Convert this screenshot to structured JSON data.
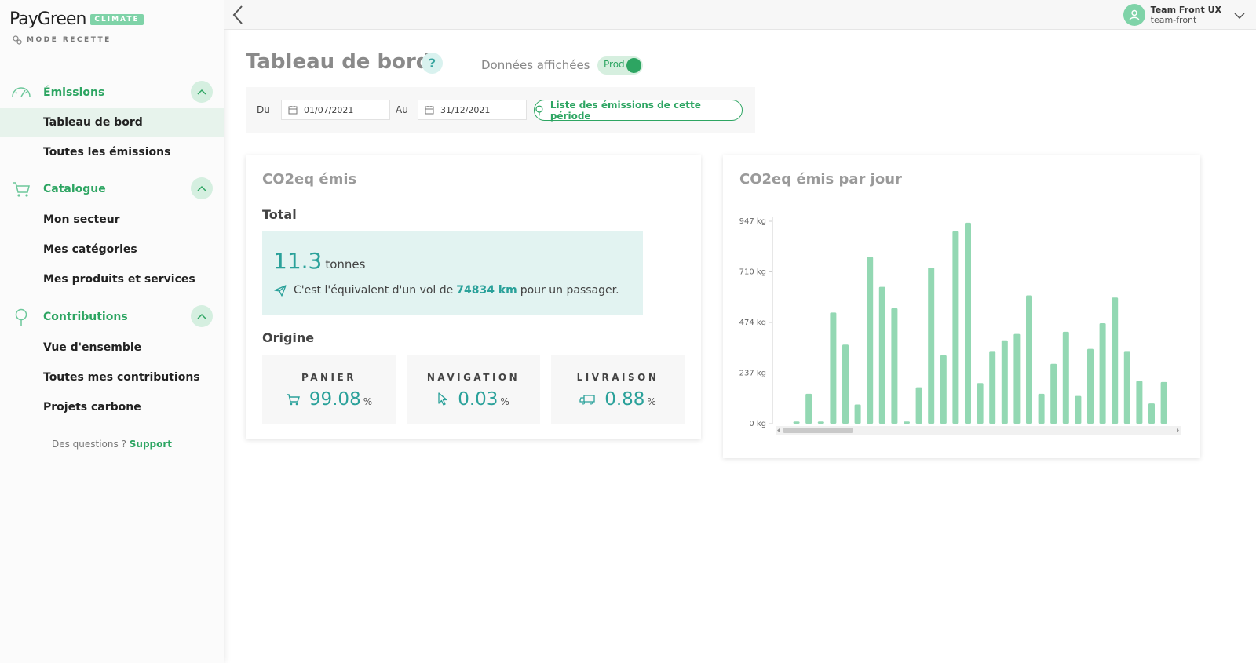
{
  "brand": {
    "name_light": "Pay",
    "name_bold": "Green",
    "badge": "CLIMATE",
    "mode": "MODE RECETTE"
  },
  "sidebar": {
    "sections": [
      {
        "label": "Émissions",
        "icon": "gauge-icon",
        "items": [
          {
            "label": "Tableau de bord",
            "active": true
          },
          {
            "label": "Toutes les émissions"
          }
        ]
      },
      {
        "label": "Catalogue",
        "icon": "cart-icon",
        "items": [
          {
            "label": "Mon secteur"
          },
          {
            "label": "Mes catégories"
          },
          {
            "label": "Mes produits et services"
          }
        ]
      },
      {
        "label": "Contributions",
        "icon": "tree-icon",
        "items": [
          {
            "label": "Vue d'ensemble"
          },
          {
            "label": "Toutes mes contributions"
          },
          {
            "label": "Projets carbone"
          }
        ]
      }
    ],
    "support_text": "Des questions ?",
    "support_link": "Support"
  },
  "topbar": {
    "user_name": "Team Front UX",
    "user_sub": "team-front"
  },
  "header": {
    "title": "Tableau de bord",
    "help": "?",
    "data_label": "Données affichées",
    "toggle_label": "Prod"
  },
  "filter": {
    "from_label": "Du",
    "from_value": "01/07/2021",
    "to_label": "Au",
    "to_value": "31/12/2021",
    "list_button": "Liste des émissions de cette période"
  },
  "co2_card": {
    "title": "CO2eq émis",
    "total_heading": "Total",
    "total_value": "11.3",
    "total_unit": "tonnes",
    "equiv_prefix": "C'est l'équivalent d'un vol de",
    "equiv_value": "74834 km",
    "equiv_suffix": "pour un passager.",
    "origin_heading": "Origine",
    "origins": [
      {
        "label": "PANIER",
        "value": "99.08",
        "unit": "%",
        "icon": "cart-icon"
      },
      {
        "label": "NAVIGATION",
        "value": "0.03",
        "unit": "%",
        "icon": "cursor-icon"
      },
      {
        "label": "LIVRAISON",
        "value": "0.88",
        "unit": "%",
        "icon": "truck-icon"
      }
    ]
  },
  "chart_card": {
    "title": "CO2eq émis par jour"
  },
  "chart_data": {
    "type": "bar",
    "title": "CO2eq émis par jour",
    "ylabel": "",
    "y_unit": "kg",
    "yticks": [
      "0 kg",
      "237 kg",
      "474 kg",
      "710 kg",
      "947 kg"
    ],
    "ylim": [
      0,
      947
    ],
    "values": [
      0,
      10,
      140,
      10,
      520,
      370,
      90,
      780,
      640,
      540,
      10,
      170,
      730,
      320,
      900,
      940,
      190,
      340,
      390,
      420,
      600,
      140,
      280,
      430,
      130,
      350,
      470,
      590,
      340,
      200,
      95,
      195
    ],
    "grid": false,
    "bar_color": "#93d8b3"
  },
  "colors": {
    "accent": "#2da562",
    "teal": "#2aa19a",
    "light_green": "#d6efdf"
  }
}
